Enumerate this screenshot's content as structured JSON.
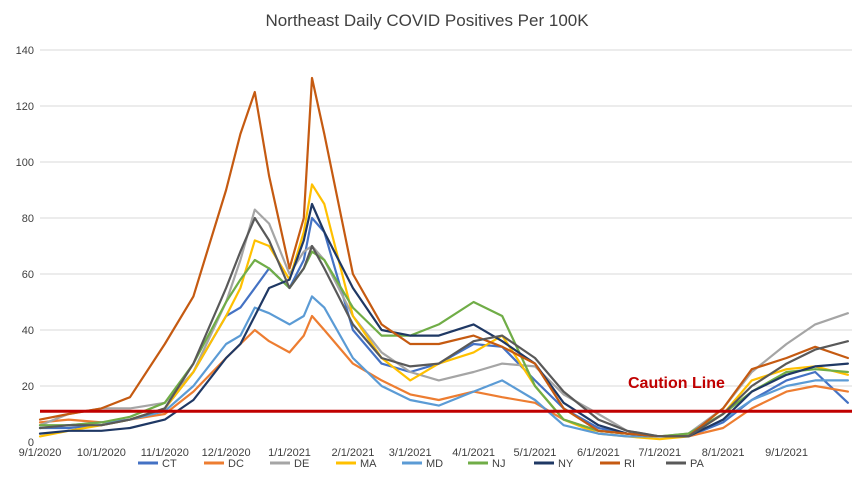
{
  "chart_data": {
    "type": "line",
    "title": "Northeast Daily COVID Positives Per 100K",
    "xlabel": "",
    "ylabel": "",
    "ylim": [
      0,
      140
    ],
    "yticks": [
      0,
      20,
      40,
      60,
      80,
      100,
      120,
      140
    ],
    "x_tick_labels": [
      "9/1/2020",
      "10/1/2020",
      "11/1/2020",
      "12/1/2020",
      "1/1/2021",
      "2/1/2021",
      "3/1/2021",
      "4/1/2021",
      "5/1/2021",
      "6/1/2021",
      "7/1/2021",
      "8/1/2021",
      "9/1/2021"
    ],
    "x_tick_dates": [
      "2020-09-01",
      "2020-10-01",
      "2020-11-01",
      "2020-12-01",
      "2021-01-01",
      "2021-02-01",
      "2021-03-01",
      "2021-04-01",
      "2021-05-01",
      "2021-06-01",
      "2021-07-01",
      "2021-08-01",
      "2021-09-01"
    ],
    "xlim": [
      "2020-09-01",
      "2021-10-03"
    ],
    "grid": "horizontal",
    "legend_position": "bottom",
    "x": [
      "2020-09-01",
      "2020-09-15",
      "2020-10-01",
      "2020-10-15",
      "2020-11-01",
      "2020-11-15",
      "2020-12-01",
      "2020-12-08",
      "2020-12-15",
      "2020-12-22",
      "2021-01-01",
      "2021-01-08",
      "2021-01-12",
      "2021-01-18",
      "2021-02-01",
      "2021-02-15",
      "2021-03-01",
      "2021-03-15",
      "2021-04-01",
      "2021-04-15",
      "2021-05-01",
      "2021-05-15",
      "2021-06-01",
      "2021-06-15",
      "2021-07-01",
      "2021-07-15",
      "2021-08-01",
      "2021-08-15",
      "2021-09-01",
      "2021-09-15",
      "2021-10-01"
    ],
    "series": [
      {
        "name": "CT",
        "color": "#4472C4",
        "values": [
          5,
          5,
          6,
          8,
          12,
          25,
          45,
          48,
          55,
          62,
          55,
          65,
          80,
          75,
          40,
          28,
          25,
          28,
          35,
          34,
          22,
          12,
          5,
          3,
          2,
          2,
          7,
          15,
          22,
          25,
          14
        ]
      },
      {
        "name": "DC",
        "color": "#ED7D31",
        "values": [
          7,
          8,
          7,
          8,
          10,
          18,
          30,
          35,
          40,
          36,
          32,
          38,
          45,
          40,
          28,
          22,
          17,
          15,
          18,
          16,
          14,
          8,
          4,
          3,
          2,
          2,
          5,
          12,
          18,
          20,
          18
        ]
      },
      {
        "name": "DE",
        "color": "#A5A5A5",
        "values": [
          6,
          10,
          12,
          12,
          14,
          25,
          50,
          65,
          83,
          78,
          60,
          68,
          70,
          65,
          45,
          32,
          25,
          22,
          25,
          28,
          27,
          17,
          10,
          4,
          2,
          3,
          12,
          25,
          35,
          42,
          46
        ]
      },
      {
        "name": "MA",
        "color": "#FFC000",
        "values": [
          2,
          4,
          6,
          8,
          12,
          25,
          45,
          55,
          72,
          70,
          58,
          75,
          92,
          85,
          45,
          30,
          22,
          28,
          32,
          38,
          20,
          8,
          3,
          2,
          1,
          2,
          10,
          22,
          26,
          27,
          24
        ]
      },
      {
        "name": "MD",
        "color": "#5B9BD5",
        "values": [
          5,
          6,
          7,
          8,
          11,
          20,
          35,
          38,
          48,
          46,
          42,
          45,
          52,
          48,
          30,
          20,
          15,
          13,
          18,
          22,
          15,
          6,
          3,
          2,
          2,
          2,
          8,
          15,
          20,
          22,
          22
        ]
      },
      {
        "name": "NJ",
        "color": "#70AD47",
        "values": [
          6,
          6,
          7,
          9,
          14,
          28,
          50,
          58,
          65,
          62,
          55,
          62,
          68,
          65,
          48,
          38,
          38,
          42,
          50,
          45,
          20,
          8,
          4,
          3,
          2,
          3,
          10,
          18,
          25,
          26,
          25
        ]
      },
      {
        "name": "NY",
        "color": "#1F3864",
        "values": [
          3,
          4,
          4,
          5,
          8,
          15,
          30,
          35,
          45,
          55,
          58,
          72,
          85,
          75,
          55,
          40,
          38,
          38,
          42,
          36,
          28,
          14,
          6,
          3,
          2,
          2,
          8,
          18,
          24,
          27,
          28
        ]
      },
      {
        "name": "RI",
        "color": "#C55A11",
        "values": [
          8,
          10,
          12,
          16,
          35,
          52,
          90,
          110,
          125,
          95,
          62,
          80,
          130,
          110,
          60,
          42,
          35,
          35,
          38,
          34,
          28,
          12,
          4,
          3,
          2,
          2,
          12,
          26,
          30,
          34,
          30
        ]
      },
      {
        "name": "PA",
        "color": "#595959",
        "values": [
          5,
          6,
          6,
          8,
          12,
          28,
          55,
          68,
          80,
          72,
          55,
          62,
          70,
          62,
          42,
          30,
          27,
          28,
          36,
          38,
          30,
          18,
          8,
          4,
          2,
          2,
          10,
          20,
          28,
          33,
          36
        ]
      }
    ],
    "annotations": [
      {
        "text": "Caution Line",
        "y": 11,
        "color": "#C00000"
      }
    ]
  }
}
